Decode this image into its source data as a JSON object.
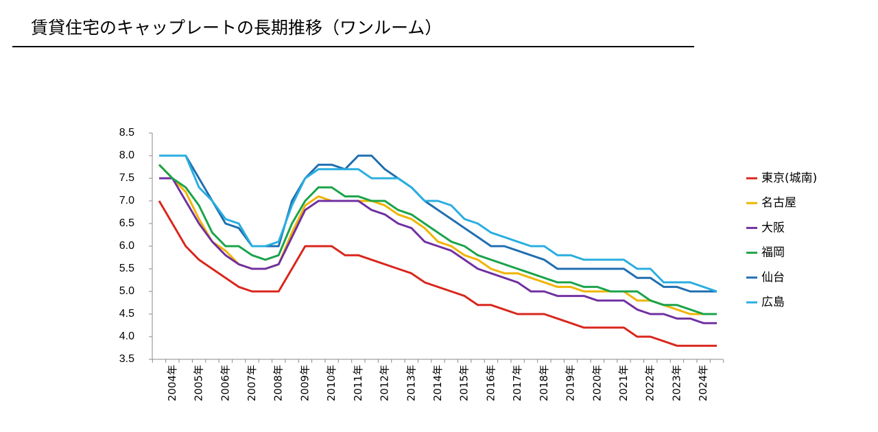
{
  "chart_data": {
    "type": "line",
    "title": "賃貸住宅のキャップレートの長期推移（ワンルーム）",
    "categories": [
      null,
      "2004年",
      null,
      "2005年",
      null,
      "2006年",
      null,
      "2007年",
      null,
      "2008年",
      null,
      "2009年",
      null,
      "2010年",
      null,
      "2011年",
      null,
      "2012年",
      null,
      "2013年",
      null,
      "2014年",
      null,
      "2015年",
      null,
      "2016年",
      null,
      "2017年",
      null,
      "2018年",
      null,
      "2019年",
      null,
      "2020年",
      null,
      "2021年",
      null,
      "2022年",
      null,
      "2023年",
      null,
      "2024年",
      null
    ],
    "ylim": [
      3.5,
      8.5
    ],
    "yticks": [
      {
        "value": 3.5,
        "label": "3.5"
      },
      {
        "value": 4,
        "label": "4.0"
      },
      {
        "value": 4.5,
        "label": "4.5"
      },
      {
        "value": 5,
        "label": "5.0"
      },
      {
        "value": 5.5,
        "label": "5.5"
      },
      {
        "value": 6,
        "label": "6.0"
      },
      {
        "value": 6.5,
        "label": "6.5"
      },
      {
        "value": 7,
        "label": "7.0"
      },
      {
        "value": 7.5,
        "label": "7.5"
      },
      {
        "value": 8,
        "label": "8.0"
      },
      {
        "value": 8.5,
        "label": "8.5"
      }
    ],
    "grid": false,
    "legend": "right",
    "series": [
      {
        "name": "東京(城南)",
        "color": "#d9261c",
        "values": [
          7.0,
          6.5,
          6.0,
          5.7,
          5.5,
          5.3,
          5.1,
          5.0,
          5.0,
          5.0,
          5.5,
          6.0,
          6.0,
          6.0,
          5.8,
          5.8,
          5.7,
          5.6,
          5.5,
          5.4,
          5.2,
          5.1,
          5.0,
          4.9,
          4.7,
          4.7,
          4.6,
          4.5,
          4.5,
          4.5,
          4.4,
          4.3,
          4.2,
          4.2,
          4.2,
          4.2,
          4.0,
          4.0,
          3.9,
          3.8,
          3.8,
          3.8,
          3.8
        ]
      },
      {
        "name": "名古屋",
        "color": "#f0b400",
        "values": [
          7.8,
          7.5,
          7.2,
          6.6,
          6.1,
          5.9,
          5.6,
          5.5,
          5.5,
          5.6,
          6.3,
          6.9,
          7.1,
          7.0,
          7.0,
          7.0,
          7.0,
          6.9,
          6.7,
          6.6,
          6.4,
          6.1,
          6.0,
          5.8,
          5.7,
          5.5,
          5.4,
          5.4,
          5.3,
          5.2,
          5.1,
          5.1,
          5.0,
          5.0,
          5.0,
          5.0,
          4.8,
          4.8,
          4.7,
          4.6,
          4.5,
          4.5,
          4.5
        ]
      },
      {
        "name": "大阪",
        "color": "#7030a0",
        "values": [
          7.5,
          7.5,
          7.0,
          6.5,
          6.1,
          5.8,
          5.6,
          5.5,
          5.5,
          5.6,
          6.2,
          6.8,
          7.0,
          7.0,
          7.0,
          7.0,
          6.8,
          6.7,
          6.5,
          6.4,
          6.1,
          6.0,
          5.9,
          5.7,
          5.5,
          5.4,
          5.3,
          5.2,
          5.0,
          5.0,
          4.9,
          4.9,
          4.9,
          4.8,
          4.8,
          4.8,
          4.6,
          4.5,
          4.5,
          4.4,
          4.4,
          4.3,
          4.3
        ]
      },
      {
        "name": "福岡",
        "color": "#1aa34a",
        "values": [
          7.8,
          7.5,
          7.3,
          6.9,
          6.3,
          6.0,
          6.0,
          5.8,
          5.7,
          5.8,
          6.5,
          7.0,
          7.3,
          7.3,
          7.1,
          7.1,
          7.0,
          7.0,
          6.8,
          6.7,
          6.5,
          6.3,
          6.1,
          6.0,
          5.8,
          5.7,
          5.6,
          5.5,
          5.4,
          5.3,
          5.2,
          5.2,
          5.1,
          5.1,
          5.0,
          5.0,
          5.0,
          4.8,
          4.7,
          4.7,
          4.6,
          4.5,
          4.5
        ]
      },
      {
        "name": "仙台",
        "color": "#1f6eb0",
        "values": [
          8.0,
          8.0,
          8.0,
          7.5,
          7.0,
          6.5,
          6.4,
          6.0,
          6.0,
          6.0,
          7.0,
          7.5,
          7.8,
          7.8,
          7.7,
          8.0,
          8.0,
          7.7,
          7.5,
          7.3,
          7.0,
          6.8,
          6.6,
          6.4,
          6.2,
          6.0,
          6.0,
          5.9,
          5.8,
          5.7,
          5.5,
          5.5,
          5.5,
          5.5,
          5.5,
          5.5,
          5.3,
          5.3,
          5.1,
          5.1,
          5.0,
          5.0,
          5.0
        ]
      },
      {
        "name": "広島",
        "color": "#29aee0",
        "values": [
          8.0,
          8.0,
          8.0,
          7.3,
          7.0,
          6.6,
          6.5,
          6.0,
          6.0,
          6.1,
          6.9,
          7.5,
          7.7,
          7.7,
          7.7,
          7.7,
          7.5,
          7.5,
          7.5,
          7.3,
          7.0,
          7.0,
          6.9,
          6.6,
          6.5,
          6.3,
          6.2,
          6.1,
          6.0,
          6.0,
          5.8,
          5.8,
          5.7,
          5.7,
          5.7,
          5.7,
          5.5,
          5.5,
          5.2,
          5.2,
          5.2,
          5.1,
          5.0
        ]
      }
    ]
  }
}
